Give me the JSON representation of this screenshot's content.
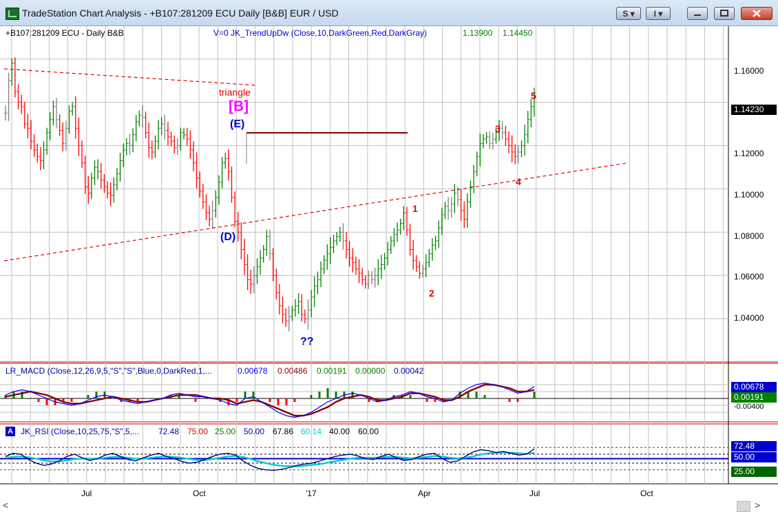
{
  "window": {
    "title": "TradeStation Chart Analysis - +B107:281209 ECU Daily [B&B] EUR / USD",
    "btn_s": "S ▾",
    "btn_i": "I ▾"
  },
  "colors": {
    "up_bar": "#008000",
    "down_bar": "#ff0000",
    "neutral_bar": "#808080",
    "grid": "#c0c0c0",
    "trendline": "#e00000",
    "resistance": "#800000",
    "macd_line": "#0000ff",
    "signal_line": "#8b0000",
    "rsi_line": "#000080",
    "rsi_avg": "#00cccc"
  },
  "chart_data": [
    {
      "type": "line",
      "title": "+B107:281209 ECU - Daily  B&B",
      "indicator_label": "V=0  JK_TrendUpDw  (Close,10,DarkGreen,Red,DarkGray)",
      "indicator_values": [
        "1.13900",
        "1.14450"
      ],
      "x_tick_labels": [
        "Jul",
        "Oct",
        "'17",
        "Apr",
        "Jul",
        "Oct"
      ],
      "y_tick_labels": [
        "1.16000",
        "1.14000",
        "1.12000",
        "1.10000",
        "1.08000",
        "1.06000",
        "1.04000"
      ],
      "ylim": [
        1.02,
        1.172
      ],
      "last_price": "1.14230",
      "series": [
        {
          "values": [
            1.135,
            1.15,
            1.158,
            1.145,
            1.14,
            1.138,
            1.13,
            1.128,
            1.122,
            1.118,
            1.115,
            1.113,
            1.118,
            1.126,
            1.132,
            1.138,
            1.132,
            1.127,
            1.121,
            1.128,
            1.136,
            1.138,
            1.128,
            1.12,
            1.112,
            1.101,
            1.098,
            1.105,
            1.11,
            1.108,
            1.104,
            1.101,
            1.098,
            1.097,
            1.102,
            1.107,
            1.113,
            1.118,
            1.121,
            1.12,
            1.125,
            1.131,
            1.134,
            1.133,
            1.126,
            1.119,
            1.117,
            1.122,
            1.128,
            1.13,
            1.127,
            1.124,
            1.122,
            1.119,
            1.12,
            1.126,
            1.125,
            1.123,
            1.118,
            1.112,
            1.105,
            1.099,
            1.094,
            1.089,
            1.086,
            1.09,
            1.096,
            1.103,
            1.112,
            1.114,
            1.108,
            1.096,
            1.085,
            1.08,
            1.072,
            1.065,
            1.058,
            1.056,
            1.06,
            1.064,
            1.068,
            1.072,
            1.078,
            1.07,
            1.06,
            1.052,
            1.046,
            1.042,
            1.039,
            1.041,
            1.044,
            1.046,
            1.048,
            1.042,
            1.04,
            1.044,
            1.05,
            1.055,
            1.058,
            1.063,
            1.067,
            1.07,
            1.073,
            1.076,
            1.078,
            1.08,
            1.076,
            1.072,
            1.068,
            1.066,
            1.063,
            1.061,
            1.058,
            1.056,
            1.06,
            1.058,
            1.06,
            1.063,
            1.065,
            1.068,
            1.072,
            1.076,
            1.079,
            1.081,
            1.084,
            1.089,
            1.081,
            1.072,
            1.067,
            1.064,
            1.061,
            1.063,
            1.066,
            1.07,
            1.074,
            1.076,
            1.082,
            1.088,
            1.092,
            1.09,
            1.093,
            1.098,
            1.095,
            1.09,
            1.086,
            1.094,
            1.101,
            1.108,
            1.115,
            1.121,
            1.123,
            1.124,
            1.121,
            1.123,
            1.126,
            1.128,
            1.126,
            1.123,
            1.12,
            1.117,
            1.115,
            1.117,
            1.12,
            1.125,
            1.132,
            1.138,
            1.142
          ]
        }
      ],
      "annotations": [
        "triangle",
        "[B]",
        "(E)",
        "(D)",
        "??",
        "1",
        "2",
        "3",
        "4",
        "5"
      ]
    },
    {
      "type": "line",
      "title": "LR_MACD (Close,12,26,9,5,\"S\",\"S\",Blue,0,DarkRed,1,...",
      "header_values": [
        "0.00678",
        "0.00486",
        "0.00191",
        "0.00000",
        "0.00042"
      ],
      "ylim": [
        -0.012,
        0.01
      ],
      "right_labels": [
        "0.00678",
        "0.00191",
        "-0.00400"
      ],
      "series": [
        {
          "name": "MACD",
          "values": [
            0.002,
            0.004,
            0.005,
            0.004,
            0.002,
            0.0,
            -0.002,
            -0.003,
            -0.004,
            -0.003,
            -0.001,
            0.001,
            0.002,
            0.001,
            -0.001,
            -0.002,
            -0.003,
            -0.002,
            -0.001,
            0.0,
            0.002,
            0.003,
            0.002,
            0.001,
            0.001,
            0.0,
            -0.001,
            -0.003,
            -0.004,
            0.0,
            0.001,
            -0.002,
            -0.005,
            -0.008,
            -0.01,
            -0.011,
            -0.01,
            -0.008,
            -0.005,
            -0.002,
            0.0,
            0.002,
            0.003,
            0.002,
            0.0,
            -0.002,
            -0.001,
            0.001,
            0.002,
            0.004,
            0.003,
            0.001,
            0.0,
            -0.002,
            -0.001,
            0.003,
            0.006,
            0.008,
            0.009,
            0.008,
            0.007,
            0.005,
            0.003,
            0.004,
            0.007
          ]
        },
        {
          "name": "Signal",
          "values": [
            0.001,
            0.002,
            0.003,
            0.004,
            0.003,
            0.002,
            0.0,
            -0.002,
            -0.003,
            -0.003,
            -0.002,
            -0.001,
            0.0,
            0.001,
            0.0,
            -0.001,
            -0.002,
            -0.002,
            -0.001,
            0.0,
            0.001,
            0.002,
            0.002,
            0.002,
            0.001,
            0.0,
            0.0,
            -0.001,
            -0.003,
            -0.002,
            -0.001,
            -0.002,
            -0.004,
            -0.006,
            -0.008,
            -0.01,
            -0.01,
            -0.009,
            -0.007,
            -0.005,
            -0.002,
            0.0,
            0.001,
            0.002,
            0.001,
            -0.001,
            -0.001,
            0.0,
            0.001,
            0.003,
            0.003,
            0.002,
            0.001,
            -0.001,
            -0.001,
            0.001,
            0.004,
            0.006,
            0.008,
            0.008,
            0.007,
            0.006,
            0.004,
            0.004,
            0.005
          ]
        }
      ]
    },
    {
      "type": "line",
      "title": "JK_RSI (Close,10,25,75,\"S\",5,...",
      "header_values": [
        "72.48",
        "75.00",
        "25.00",
        "50.00",
        "67.86",
        "60.14",
        "40.00",
        "60.00"
      ],
      "ylim": [
        0,
        100
      ],
      "right_labels": [
        "72.48",
        "50.00",
        "25.00"
      ],
      "series": [
        {
          "name": "RSI",
          "values": [
            55,
            62,
            60,
            48,
            40,
            35,
            38,
            45,
            55,
            60,
            52,
            46,
            50,
            58,
            62,
            55,
            48,
            45,
            52,
            58,
            62,
            55,
            50,
            44,
            40,
            42,
            48,
            55,
            60,
            62,
            58,
            45,
            35,
            28,
            25,
            24,
            26,
            30,
            35,
            38,
            40,
            45,
            50,
            55,
            58,
            60,
            56,
            50,
            48,
            55,
            60,
            52,
            46,
            48,
            55,
            60,
            62,
            50,
            42,
            45,
            55,
            65,
            70,
            68,
            64,
            66,
            62,
            58,
            60,
            72
          ]
        },
        {
          "name": "Average",
          "values": [
            52,
            54,
            55,
            53,
            50,
            46,
            44,
            44,
            46,
            49,
            50,
            50,
            50,
            52,
            54,
            54,
            52,
            50,
            50,
            52,
            54,
            55,
            54,
            52,
            49,
            47,
            47,
            49,
            52,
            55,
            56,
            54,
            49,
            44,
            40,
            36,
            34,
            33,
            33,
            34,
            36,
            38,
            41,
            44,
            47,
            50,
            52,
            52,
            52,
            53,
            54,
            54,
            52,
            51,
            52,
            54,
            56,
            55,
            52,
            51,
            52,
            55,
            59,
            62,
            63,
            64,
            63,
            62,
            61,
            63
          ]
        }
      ]
    }
  ]
}
